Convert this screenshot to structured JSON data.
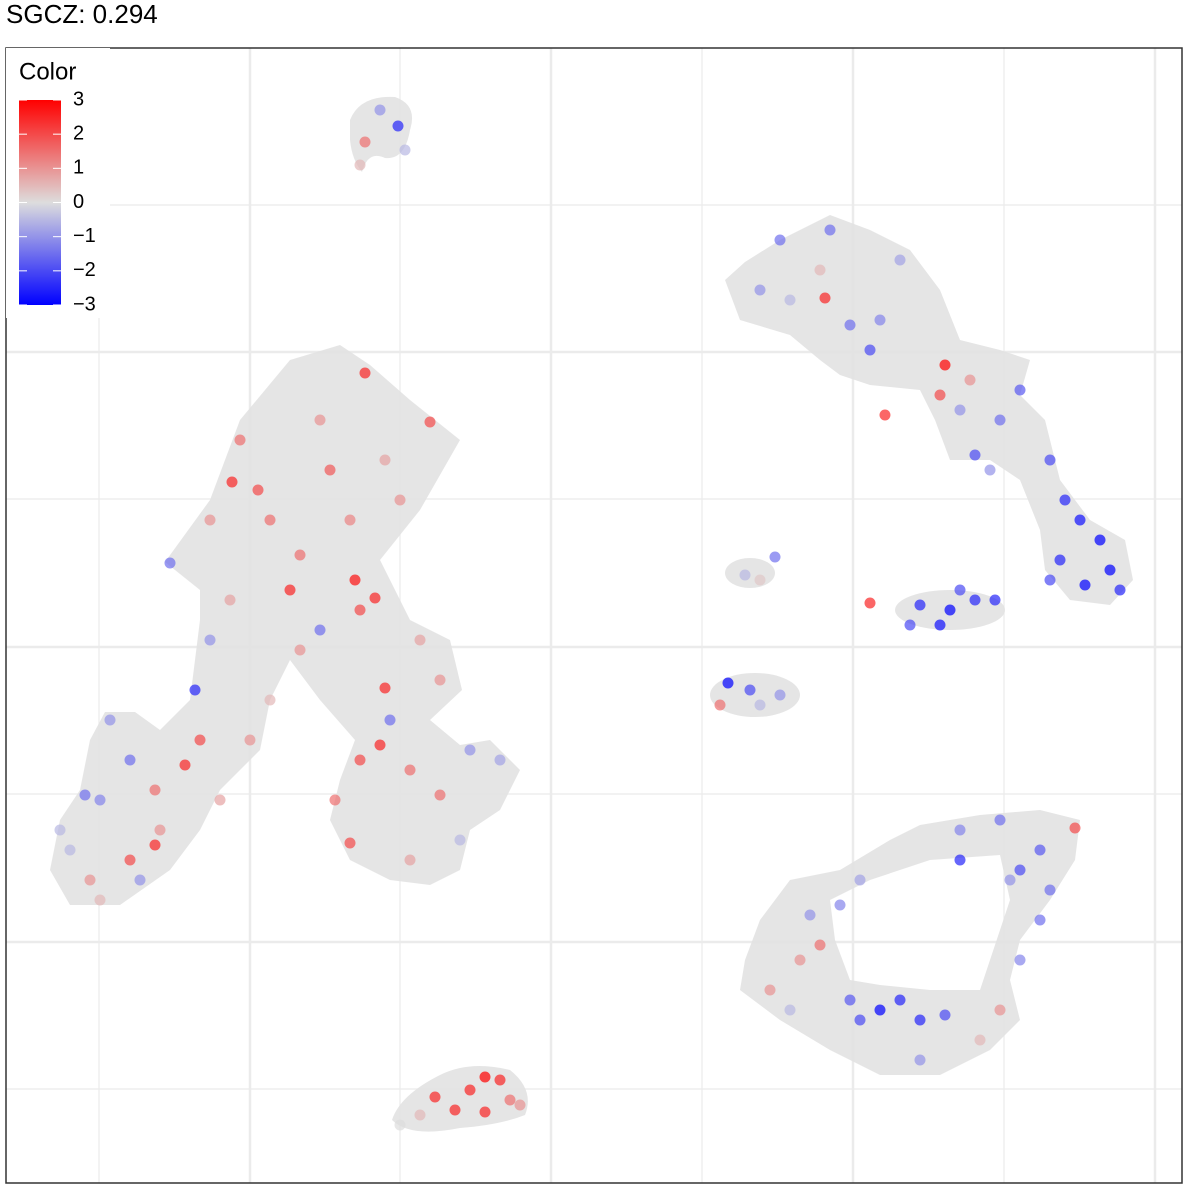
{
  "chart_data": {
    "type": "scatter",
    "title": "SGCZ: 0.294",
    "xlim": [
      0,
      1176
    ],
    "ylim": [
      0,
      1135
    ],
    "xticks": [
      93,
      244,
      394,
      545,
      696,
      847,
      998,
      1149
    ],
    "yticks": [
      94,
      241,
      389,
      536,
      684,
      831,
      978
    ],
    "grid": true,
    "colorbar": {
      "title": "Color",
      "lim": [
        -3,
        3
      ],
      "colors": [
        "#0000ff",
        "#dddddd",
        "#ff0000"
      ],
      "ticks": [
        3,
        2,
        1,
        0,
        {
          "value": -1,
          "label": "−1"
        },
        {
          "value": -2,
          "label": "−2"
        },
        {
          "value": -3,
          "label": "−3"
        }
      ],
      "position": "top-left"
    },
    "x": [
      392,
      359,
      374,
      354,
      399,
      359,
      424,
      226,
      252,
      284,
      294,
      349,
      369,
      354,
      234,
      324,
      264,
      204,
      314,
      379,
      394,
      344,
      294,
      224,
      189,
      164,
      314,
      384,
      379,
      374,
      354,
      404,
      434,
      414,
      464,
      494,
      344,
      329,
      434,
      404,
      454,
      194,
      179,
      124,
      104,
      79,
      149,
      154,
      149,
      124,
      84,
      64,
      134,
      94,
      244,
      264,
      214,
      94,
      54,
      204,
      819,
      879,
      939,
      934,
      864,
      844,
      774,
      824,
      754,
      894,
      874,
      954,
      969,
      994,
      1014,
      1044,
      1059,
      1074,
      1094,
      1104,
      1079,
      1054,
      1114,
      1044,
      964,
      984,
      814,
      784,
      769,
      739,
      754,
      944,
      914,
      969,
      989,
      904,
      934,
      864,
      954,
      722,
      744,
      714,
      774,
      754,
      874,
      894,
      914,
      854,
      939,
      844,
      954,
      1014,
      1044,
      1034,
      994,
      954,
      1069,
      1004,
      814,
      794,
      764,
      834,
      804,
      854,
      994,
      974,
      784,
      914,
      1014,
      1034,
      479,
      464,
      494,
      479,
      449,
      429,
      504,
      514,
      414,
      394
    ],
    "y": [
      1057,
      1041,
      1073,
      1018,
      1033,
      810,
      761,
      701,
      693,
      593,
      628,
      603,
      585,
      573,
      743,
      713,
      663,
      663,
      763,
      723,
      683,
      663,
      533,
      583,
      493,
      620,
      553,
      463,
      495,
      438,
      423,
      413,
      503,
      543,
      433,
      423,
      340,
      383,
      388,
      323,
      343,
      443,
      418,
      423,
      463,
      388,
      393,
      353,
      338,
      323,
      303,
      333,
      303,
      283,
      443,
      483,
      383,
      383,
      353,
      543,
      885,
      768,
      818,
      788,
      833,
      858,
      943,
      953,
      893,
      923,
      863,
      773,
      728,
      763,
      793,
      723,
      683,
      663,
      643,
      613,
      598,
      623,
      593,
      603,
      803,
      713,
      913,
      883,
      626,
      608,
      603,
      573,
      578,
      583,
      583,
      558,
      558,
      580,
      593,
      500,
      493,
      478,
      488,
      478,
      173,
      183,
      163,
      163,
      168,
      183,
      323,
      313,
      293,
      333,
      363,
      353,
      355,
      303,
      238,
      223,
      193,
      278,
      268,
      303,
      173,
      143,
      173,
      123,
      223,
      263,
      106,
      93,
      103,
      71,
      73,
      86,
      83,
      78,
      68,
      58
    ],
    "values": [
      -2.5,
      1.5,
      -1,
      0.5,
      -0.5,
      2.5,
      2,
      2.5,
      2,
      2.5,
      1.5,
      2.8,
      2.5,
      2,
      1.5,
      1.8,
      1.5,
      1,
      1,
      0.8,
      1,
      1.2,
      1,
      0.8,
      -2.5,
      -1.5,
      -1.5,
      -1.5,
      2.5,
      2.5,
      2,
      1.5,
      1,
      0.8,
      -1,
      -0.8,
      2,
      1.5,
      1.5,
      0.8,
      -0.5,
      2,
      2.5,
      -1.5,
      -1,
      -1.5,
      1.5,
      1,
      2.5,
      2,
      1,
      -0.5,
      -1,
      0.5,
      1,
      0.5,
      0.8,
      -1.2,
      -0.5,
      -1,
      2.5,
      2.5,
      3,
      2,
      -2,
      -1.5,
      -1.5,
      -1.5,
      -1,
      -0.8,
      -1.2,
      -1,
      -2,
      -1.5,
      -1.8,
      -2,
      -2.5,
      -2.8,
      -3,
      -3,
      -3,
      -2.5,
      -2.5,
      -2,
      1,
      -1,
      0.5,
      -0.5,
      -1.5,
      -0.5,
      0.3,
      -3,
      -2.5,
      -2.5,
      -2.5,
      -2,
      -2.8,
      2.5,
      -2,
      -3,
      -2,
      1.5,
      -1,
      -0.5,
      -3,
      -2.5,
      -2.5,
      -2,
      -2,
      -1.8,
      -2.5,
      -2,
      -1.5,
      -1.8,
      -1.5,
      -1.2,
      2,
      -1,
      1.5,
      1,
      1,
      -1.2,
      -1,
      -0.8,
      1,
      0.5,
      -0.5,
      -1,
      -1.2,
      -1.5,
      3,
      2.5,
      2.5,
      2.5,
      2.5,
      2.5,
      1.5,
      1,
      0.5,
      0
    ]
  }
}
